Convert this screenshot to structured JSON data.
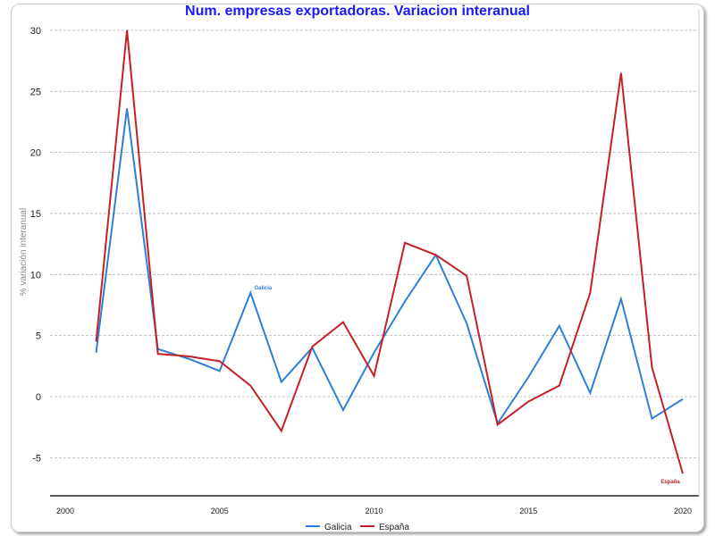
{
  "chart_data": {
    "type": "line",
    "title": "Num. empresas exportadoras. Variacion interanual",
    "xlabel": "",
    "ylabel": "% variación interanual",
    "x": [
      2001,
      2002,
      2003,
      2004,
      2005,
      2006,
      2007,
      2008,
      2009,
      2010,
      2011,
      2012,
      2013,
      2014,
      2015,
      2016,
      2017,
      2018,
      2019,
      2020
    ],
    "xlim": [
      2000,
      2020
    ],
    "ylim": [
      -8.2,
      31.5
    ],
    "xticks": [
      2000,
      2005,
      2010,
      2015,
      2020
    ],
    "yticks": [
      -5,
      0,
      5,
      10,
      15,
      20,
      25,
      30
    ],
    "grid": true,
    "legend_position": "bottom",
    "series": [
      {
        "name": "Galicia",
        "color": "#2e7fd8",
        "label_year": 2006,
        "values": [
          3.6,
          23.6,
          3.9,
          3.1,
          2.1,
          8.5,
          1.2,
          4.0,
          -1.1,
          3.6,
          7.8,
          11.6,
          6.0,
          -2.2,
          1.6,
          5.8,
          0.3,
          8.0,
          -1.8,
          -0.2
        ]
      },
      {
        "name": "España",
        "color": "#c42127",
        "label_year": 2020,
        "values": [
          4.5,
          30.0,
          3.5,
          3.3,
          2.9,
          0.9,
          -2.8,
          4.1,
          6.1,
          1.7,
          12.6,
          11.6,
          9.9,
          -2.3,
          -0.4,
          0.9,
          8.5,
          26.5,
          2.4,
          -6.3
        ]
      }
    ]
  }
}
